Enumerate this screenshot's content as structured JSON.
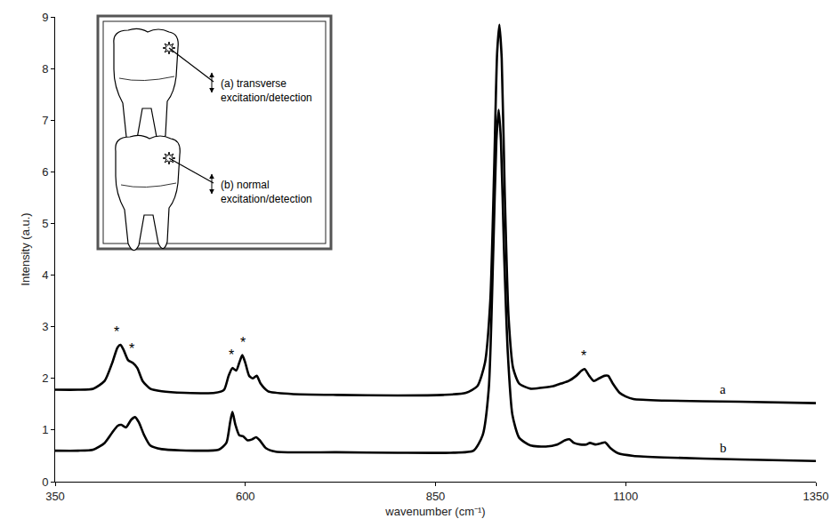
{
  "chart_data": {
    "type": "line",
    "x_label": "wavenumber (cm⁻¹)",
    "y_label": "Intensity (a.u.)",
    "xlim": [
      350,
      1350
    ],
    "xticks": [
      350,
      600,
      850,
      1100,
      1350
    ],
    "ylim": [
      0,
      9
    ],
    "yticks": [
      0,
      1,
      2,
      3,
      4,
      5,
      6,
      7,
      8,
      9
    ],
    "grid": false,
    "series": [
      {
        "name": "a",
        "color": "#000000",
        "x": [
          350,
          380,
          400,
          415,
          425,
          432,
          436,
          440,
          446,
          452,
          458,
          465,
          475,
          490,
          520,
          560,
          572,
          578,
          583,
          588,
          592,
          596,
          600,
          605,
          610,
          615,
          620,
          630,
          660,
          720,
          800,
          860,
          890,
          905,
          915,
          922,
          927,
          931,
          934,
          937,
          941,
          946,
          952,
          960,
          975,
          990,
          1005,
          1015,
          1025,
          1035,
          1042,
          1046,
          1052,
          1058,
          1065,
          1072,
          1077,
          1083,
          1092,
          1100,
          1110,
          1150,
          1250,
          1350
        ],
        "values": [
          1.78,
          1.78,
          1.8,
          1.95,
          2.3,
          2.6,
          2.65,
          2.55,
          2.35,
          2.3,
          2.2,
          1.95,
          1.8,
          1.75,
          1.72,
          1.72,
          1.78,
          2.05,
          2.2,
          2.15,
          2.3,
          2.45,
          2.3,
          2.05,
          2.0,
          2.05,
          1.9,
          1.75,
          1.7,
          1.68,
          1.67,
          1.68,
          1.72,
          1.85,
          2.3,
          3.5,
          6.0,
          8.3,
          8.85,
          8.2,
          5.6,
          3.2,
          2.2,
          1.9,
          1.8,
          1.82,
          1.85,
          1.9,
          1.95,
          2.05,
          2.15,
          2.18,
          2.05,
          1.95,
          2.0,
          2.05,
          2.05,
          1.9,
          1.72,
          1.65,
          1.6,
          1.57,
          1.55,
          1.52
        ]
      },
      {
        "name": "b",
        "color": "#000000",
        "x": [
          350,
          380,
          400,
          415,
          425,
          432,
          437,
          443,
          450,
          455,
          460,
          467,
          475,
          490,
          540,
          565,
          575,
          580,
          583,
          587,
          592,
          597,
          603,
          609,
          614,
          619,
          627,
          640,
          720,
          800,
          870,
          900,
          912,
          920,
          926,
          930,
          933,
          936,
          940,
          945,
          951,
          960,
          975,
          995,
          1010,
          1020,
          1026,
          1032,
          1040,
          1048,
          1053,
          1060,
          1067,
          1073,
          1080,
          1090,
          1110,
          1150,
          1250,
          1350
        ],
        "values": [
          0.6,
          0.6,
          0.62,
          0.75,
          0.95,
          1.08,
          1.1,
          1.05,
          1.2,
          1.25,
          1.15,
          0.9,
          0.7,
          0.63,
          0.6,
          0.62,
          0.75,
          1.15,
          1.35,
          1.1,
          0.9,
          0.88,
          0.8,
          0.82,
          0.86,
          0.8,
          0.65,
          0.58,
          0.57,
          0.56,
          0.56,
          0.6,
          0.9,
          1.8,
          4.5,
          6.6,
          7.2,
          6.6,
          4.5,
          2.5,
          1.3,
          0.85,
          0.7,
          0.68,
          0.72,
          0.8,
          0.82,
          0.75,
          0.72,
          0.72,
          0.75,
          0.72,
          0.74,
          0.76,
          0.65,
          0.55,
          0.5,
          0.47,
          0.43,
          0.4
        ]
      }
    ],
    "annotations": [
      {
        "x": 431,
        "y": 2.72,
        "text": "*"
      },
      {
        "x": 450,
        "y": 2.4,
        "text": "*"
      },
      {
        "x": 581,
        "y": 2.27,
        "text": "*"
      },
      {
        "x": 597,
        "y": 2.52,
        "text": "*"
      },
      {
        "x": 1045,
        "y": 2.25,
        "text": "*"
      },
      {
        "x": 1228,
        "y": 1.62,
        "text": "a"
      },
      {
        "x": 1228,
        "y": 0.48,
        "text": "b"
      }
    ],
    "inset": {
      "items": [
        {
          "lines": [
            "(a) transverse",
            "excitation/detection"
          ]
        },
        {
          "lines": [
            "(b) normal",
            "excitation/detection"
          ]
        }
      ]
    }
  }
}
